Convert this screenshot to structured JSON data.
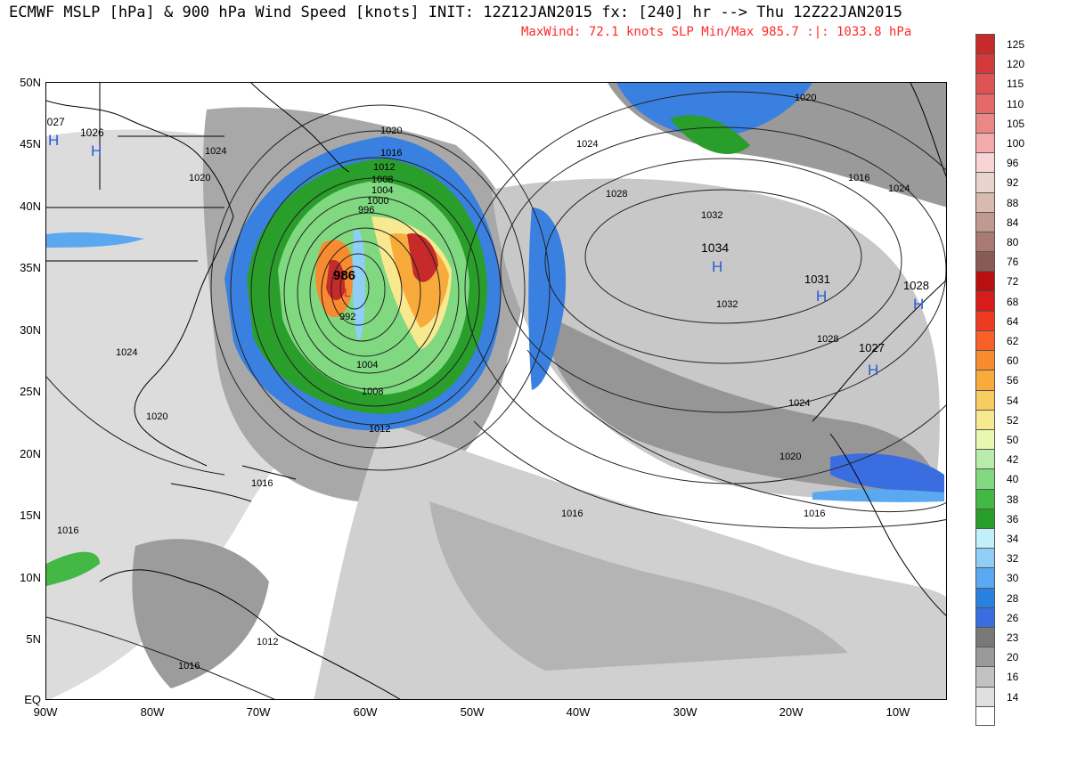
{
  "header": {
    "title_line": "ECMWF MSLP [hPa] & 900 hPa Wind Speed [knots] INIT: 12Z12JAN2015 fx: [240] hr --> Thu 12Z22JAN2015",
    "stats_line": "MaxWind:  72.1 knots   SLP Min/Max 985.7 :|: 1033.8 hPa"
  },
  "map": {
    "lat_labels": [
      "50N",
      "45N",
      "40N",
      "35N",
      "30N",
      "25N",
      "20N",
      "15N",
      "10N",
      "5N",
      "EQ"
    ],
    "lon_labels": [
      "90W",
      "80W",
      "70W",
      "60W",
      "50W",
      "40W",
      "30W",
      "20W",
      "10W"
    ],
    "low_center_label": "986",
    "low_symbol": "L",
    "high_symbol": "H",
    "high_centers": [
      {
        "name": "high-azores",
        "value": "1034"
      },
      {
        "name": "high-east",
        "value": "1031"
      },
      {
        "name": "high-iberia",
        "value": "1028"
      },
      {
        "name": "high-morocco",
        "value": "1027"
      },
      {
        "name": "high-greatlakes-1",
        "value": "1027"
      },
      {
        "name": "high-greatlakes-2",
        "value": "1026"
      }
    ],
    "isobar_labels": [
      "1020",
      "1016",
      "1012",
      "1008",
      "1004",
      "1000",
      "996",
      "992",
      "1004",
      "1008",
      "1012",
      "1020",
      "1024",
      "1028",
      "1032",
      "1032",
      "1028",
      "1024",
      "1020",
      "1016",
      "1016",
      "1016",
      "1024",
      "1024",
      "1020",
      "1016",
      "1012",
      "1016",
      "1024",
      "1016",
      "1020"
    ]
  },
  "colorbar": {
    "values": [
      "125",
      "120",
      "115",
      "110",
      "105",
      "100",
      "96",
      "92",
      "88",
      "84",
      "80",
      "76",
      "72",
      "68",
      "64",
      "62",
      "60",
      "56",
      "54",
      "52",
      "50",
      "42",
      "40",
      "38",
      "36",
      "34",
      "32",
      "30",
      "28",
      "26",
      "23",
      "20",
      "16",
      "14"
    ],
    "colors": [
      "#c62a2a",
      "#d43a3a",
      "#de5454",
      "#e46a6a",
      "#ea8888",
      "#f2aaaa",
      "#f8d4d4",
      "#e8d4cc",
      "#d8bab0",
      "#c09a90",
      "#a87a72",
      "#8a5a55",
      "#b81010",
      "#d81c1c",
      "#ee3a20",
      "#f86028",
      "#f88a30",
      "#f8aa3a",
      "#f8cc60",
      "#f8e890",
      "#e8f8b0",
      "#b8ecaa",
      "#80d880",
      "#44b844",
      "#2a9e2a",
      "#c0f0f8",
      "#90cef8",
      "#5aa8f0",
      "#2a80e0",
      "#3a6ee0",
      "#787878",
      "#9a9a9a",
      "#c2c2c2",
      "#e0e0e0"
    ]
  }
}
